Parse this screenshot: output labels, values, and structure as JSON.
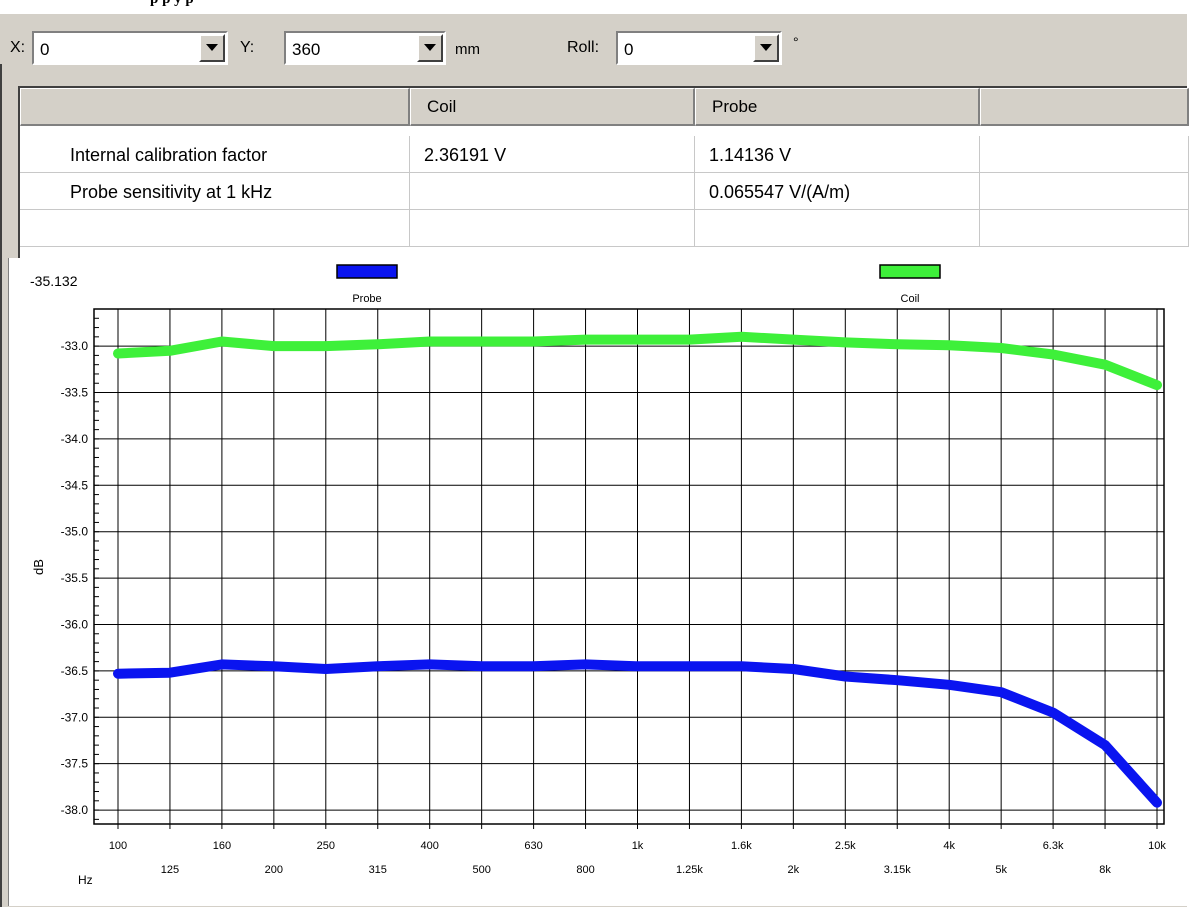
{
  "window": {
    "title_partial": "p        p    y   p"
  },
  "toolbar": {
    "x_label": "X:",
    "x_value": "0",
    "y_label": "Y:",
    "y_value": "360",
    "unit_label": "mm",
    "roll_label": "Roll:",
    "roll_value": "0",
    "roll_unit": "°"
  },
  "table": {
    "headers": [
      "",
      "Coil",
      "Probe",
      ""
    ],
    "rows": [
      [
        "Internal calibration factor",
        "2.36191 V",
        "1.14136 V",
        ""
      ],
      [
        "Probe sensitivity at 1 kHz",
        "",
        "0.065547 V/(A/m)",
        ""
      ],
      [
        "",
        "",
        "",
        ""
      ]
    ]
  },
  "chart_readout": "-35.132",
  "colors": {
    "probe": "#0a14f0",
    "coil": "#3ef03a",
    "window_bg": "#d4d0c8"
  },
  "chart_data": {
    "type": "line",
    "ylabel": "dB",
    "xlabel": "Hz",
    "ylim": [
      -38.15,
      -32.6
    ],
    "yticks": [
      "-33.0",
      "-33.5",
      "-34.0",
      "-34.5",
      "-35.0",
      "-35.5",
      "-36.0",
      "-36.5",
      "-37.0",
      "-37.5",
      "-38.0"
    ],
    "ytick_values": [
      -33.0,
      -33.5,
      -34.0,
      -34.5,
      -35.0,
      -35.5,
      -36.0,
      -36.5,
      -37.0,
      -37.5,
      -38.0
    ],
    "x_tick_labels": [
      "100",
      "125",
      "160",
      "200",
      "250",
      "315",
      "400",
      "500",
      "630",
      "800",
      "1k",
      "1.25k",
      "1.6k",
      "2k",
      "2.5k",
      "3.15k",
      "4k",
      "5k",
      "6.3k",
      "8k",
      "10k"
    ],
    "x": [
      100,
      125,
      160,
      200,
      250,
      315,
      400,
      500,
      630,
      800,
      1000,
      1250,
      1600,
      2000,
      2500,
      3150,
      4000,
      5000,
      6300,
      8000,
      10000
    ],
    "x_scale": "log",
    "grid": true,
    "legend": "top",
    "series": [
      {
        "name": "Probe",
        "color": "#0a14f0",
        "values": [
          -36.53,
          -36.52,
          -36.43,
          -36.45,
          -36.48,
          -36.45,
          -36.43,
          -36.45,
          -36.45,
          -36.43,
          -36.45,
          -36.45,
          -36.45,
          -36.48,
          -36.56,
          -36.6,
          -36.65,
          -36.73,
          -36.95,
          -37.3,
          -37.92
        ]
      },
      {
        "name": "Coil",
        "color": "#3ef03a",
        "values": [
          -33.08,
          -33.05,
          -32.95,
          -33.0,
          -33.0,
          -32.98,
          -32.95,
          -32.95,
          -32.95,
          -32.93,
          -32.93,
          -32.93,
          -32.9,
          -32.93,
          -32.96,
          -32.98,
          -32.99,
          -33.02,
          -33.09,
          -33.2,
          -33.42
        ]
      }
    ]
  }
}
